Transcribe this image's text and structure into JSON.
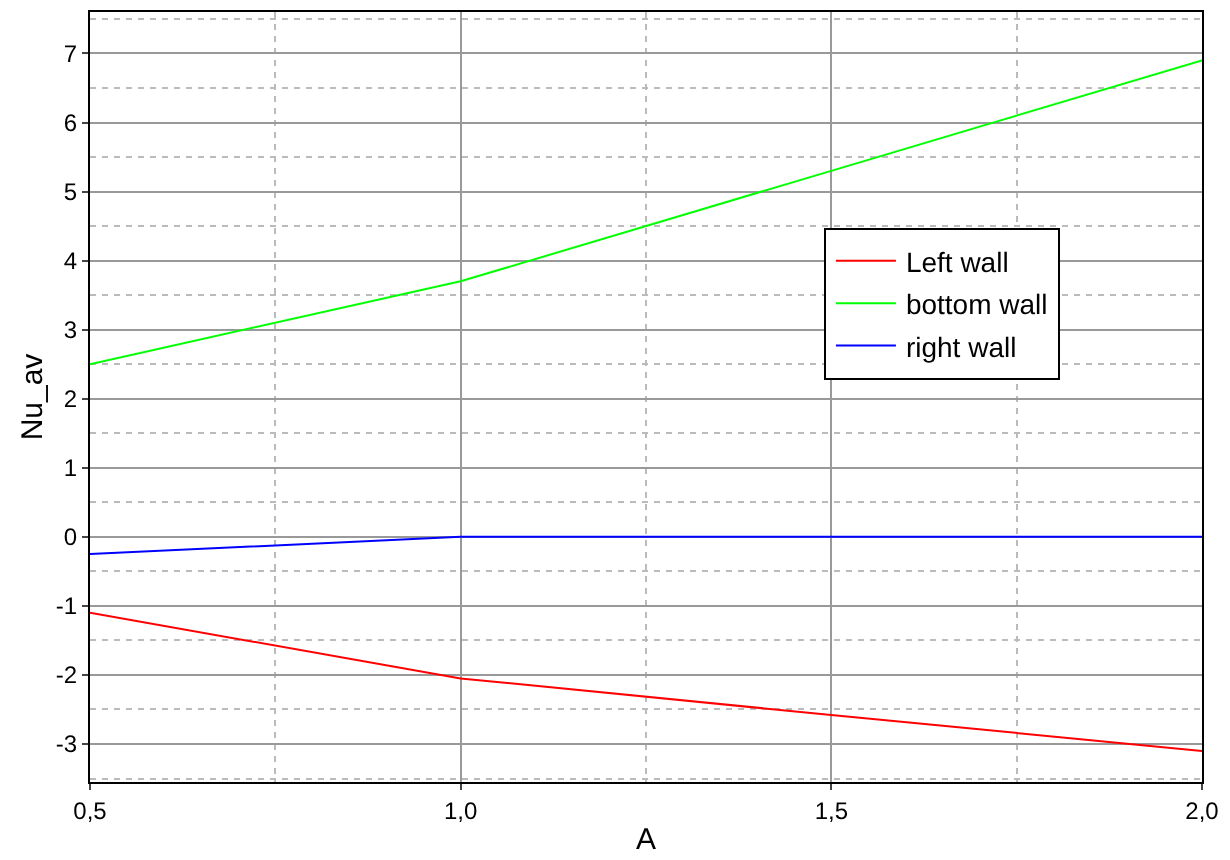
{
  "chart_data": {
    "type": "line",
    "xlabel": "A",
    "ylabel": "Nu_av",
    "x": [
      0.5,
      1.0,
      1.5,
      2.0
    ],
    "series": [
      {
        "name": "Left wall",
        "color": "#ff0000",
        "values": [
          -1.1,
          -2.05,
          -2.58,
          -3.1
        ]
      },
      {
        "name": "bottom wall",
        "color": "#00ff00",
        "values": [
          2.5,
          3.7,
          5.3,
          6.9
        ]
      },
      {
        "name": "right wall",
        "color": "#0000ff",
        "values": [
          -0.25,
          0.0,
          0.0,
          0.0
        ]
      }
    ],
    "xlim": [
      0.5,
      2.0
    ],
    "xticks": [
      {
        "value": 0.5,
        "label": "0,5"
      },
      {
        "value": 1.0,
        "label": "1,0"
      },
      {
        "value": 1.5,
        "label": "1,5"
      },
      {
        "value": 2.0,
        "label": "2,0"
      }
    ],
    "ylim": [
      -3.55,
      7.6
    ],
    "yticks": [
      -3,
      -2,
      -1,
      0,
      1,
      2,
      3,
      4,
      5,
      6,
      7
    ],
    "grid": true,
    "legend": "right",
    "marker": "none",
    "line_style": "solid"
  }
}
